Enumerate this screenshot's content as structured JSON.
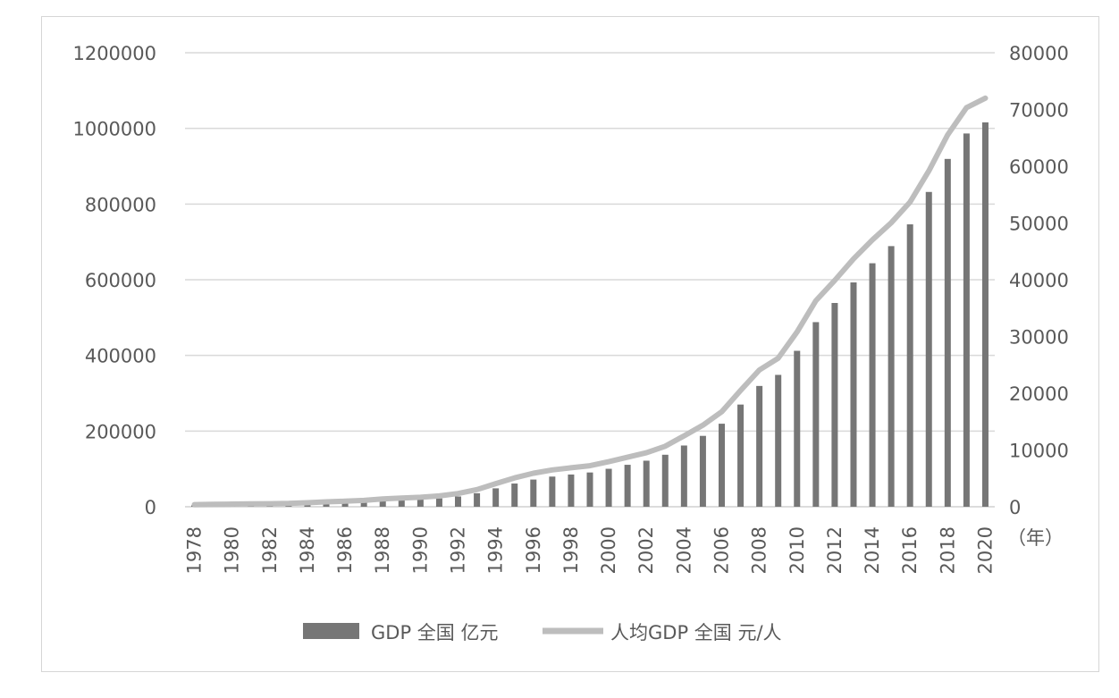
{
  "chart_data": {
    "type": "bar",
    "x": [
      1978,
      1979,
      1980,
      1981,
      1982,
      1983,
      1984,
      1985,
      1986,
      1987,
      1988,
      1989,
      1990,
      1991,
      1992,
      1993,
      1994,
      1995,
      1996,
      1997,
      1998,
      1999,
      2000,
      2001,
      2002,
      2003,
      2004,
      2005,
      2006,
      2007,
      2008,
      2009,
      2010,
      2011,
      2012,
      2013,
      2014,
      2015,
      2016,
      2017,
      2018,
      2019,
      2020
    ],
    "x_tick_labels": [
      "1978",
      "1980",
      "1982",
      "1984",
      "1986",
      "1988",
      "1990",
      "1992",
      "1994",
      "1996",
      "1998",
      "2000",
      "2002",
      "2004",
      "2006",
      "2008",
      "2010",
      "2012",
      "2014",
      "2016",
      "2018",
      "2020"
    ],
    "x_unit_label": "（年）",
    "y_left": {
      "ylim": [
        0,
        1200000
      ],
      "ticks": [
        "0",
        "200000",
        "400000",
        "600000",
        "800000",
        "1000000",
        "1200000"
      ]
    },
    "y_right": {
      "ylim": [
        0,
        80000
      ],
      "ticks": [
        "0",
        "10000",
        "20000",
        "30000",
        "40000",
        "50000",
        "60000",
        "70000",
        "80000"
      ]
    },
    "grid": true,
    "legend_position": "bottom",
    "series": [
      {
        "name": "GDP 全国 亿元",
        "type": "bar",
        "axis": "left",
        "color": "#767676",
        "values": [
          3679,
          4101,
          4588,
          4936,
          5373,
          6021,
          7279,
          9099,
          10376,
          12175,
          15180,
          17180,
          18873,
          22006,
          27195,
          35673,
          48638,
          61340,
          71814,
          79715,
          85196,
          90564,
          100280,
          110863,
          121717,
          137422,
          161840,
          187319,
          219439,
          270092,
          319245,
          348518,
          412119,
          487940,
          538580,
          592963,
          643563,
          688858,
          746395,
          832036,
          919281,
          986515,
          1015986
        ]
      },
      {
        "name": "人均GDP 全国 元/人",
        "type": "line",
        "axis": "right",
        "color": "#bdbdbd",
        "values": [
          385,
          423,
          468,
          497,
          533,
          588,
          702,
          866,
          973,
          1123,
          1378,
          1536,
          1663,
          1912,
          2334,
          3027,
          4081,
          5091,
          5898,
          6481,
          6860,
          7229,
          7942,
          8717,
          9506,
          10666,
          12487,
          14368,
          16738,
          20494,
          24100,
          26180,
          30808,
          36302,
          39874,
          43684,
          47005,
          50028,
          53680,
          59201,
          65534,
          70328,
          72000
        ]
      }
    ]
  }
}
